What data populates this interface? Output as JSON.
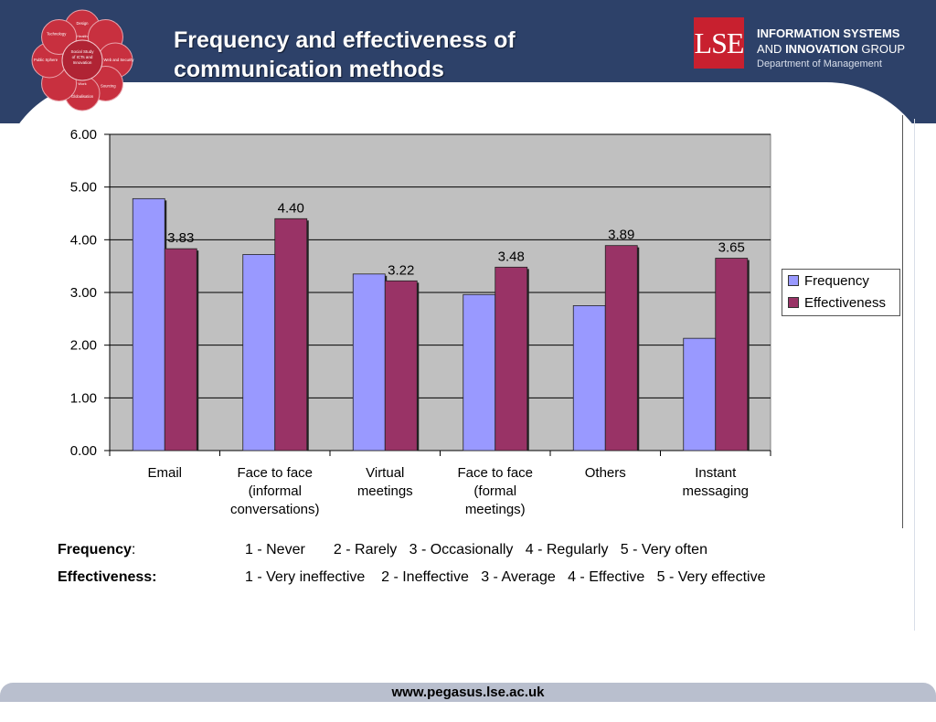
{
  "slide": {
    "title_line1": "Frequency and effectiveness of",
    "title_line2": "communication methods",
    "logo_wheel": {
      "center_lines": [
        "Social Study",
        "of ICTs and",
        "Innovation"
      ],
      "petals": [
        "Design",
        "Web and Security",
        "Sourcing",
        "Globalisation",
        "Public Sphere",
        "Technology"
      ],
      "inner_labels": [
        "Health",
        "Work"
      ]
    },
    "lse_logo_text": "LSE",
    "group_name": {
      "line1": "INFORMATION SYSTEMS",
      "line2_prefix": "AND ",
      "line2_bold": "INNOVATION",
      "line2_suffix": " GROUP",
      "line3": "Department of Management"
    },
    "colors": {
      "header": "#2d4169",
      "frequency": "#9999ff",
      "effectiveness": "#993366",
      "plot_bg": "#c0c0c0"
    }
  },
  "chart_data": {
    "type": "bar",
    "title": "",
    "xlabel": "",
    "ylabel": "",
    "categories": [
      [
        "Email"
      ],
      [
        "Face to face",
        "(informal",
        "conversations)"
      ],
      [
        "Virtual",
        "meetings"
      ],
      [
        "Face to face",
        "(formal",
        "meetings)"
      ],
      [
        "Others"
      ],
      [
        "Instant",
        "messaging"
      ]
    ],
    "series": [
      {
        "name": "Frequency",
        "values": [
          4.78,
          3.72,
          3.35,
          2.96,
          2.75,
          2.13
        ],
        "show_labels": false
      },
      {
        "name": "Effectiveness",
        "values": [
          3.83,
          4.4,
          3.22,
          3.48,
          3.89,
          3.65
        ],
        "show_labels": true
      }
    ],
    "data_labels": [
      "3.83",
      "4.40",
      "3.22",
      "3.48",
      "3.89",
      "3.65"
    ],
    "yticks": [
      "0.00",
      "1.00",
      "2.00",
      "3.00",
      "4.00",
      "5.00",
      "6.00"
    ],
    "ylim": [
      0,
      6
    ],
    "grid": true,
    "legend_position": "right"
  },
  "scale_legend": {
    "frequency_label": "Frequency",
    "frequency_colon": ":",
    "frequency_text": "1 - Never       2 - Rarely   3 - Occasionally   4 - Regularly   5 - Very often",
    "effectiveness_label": "Effectiveness:",
    "effectiveness_text": "1 - Very ineffective    2 - Ineffective   3 - Average   4 - Effective   5 - Very effective"
  },
  "footer": {
    "url": "www.pegasus.lse.ac.uk"
  }
}
